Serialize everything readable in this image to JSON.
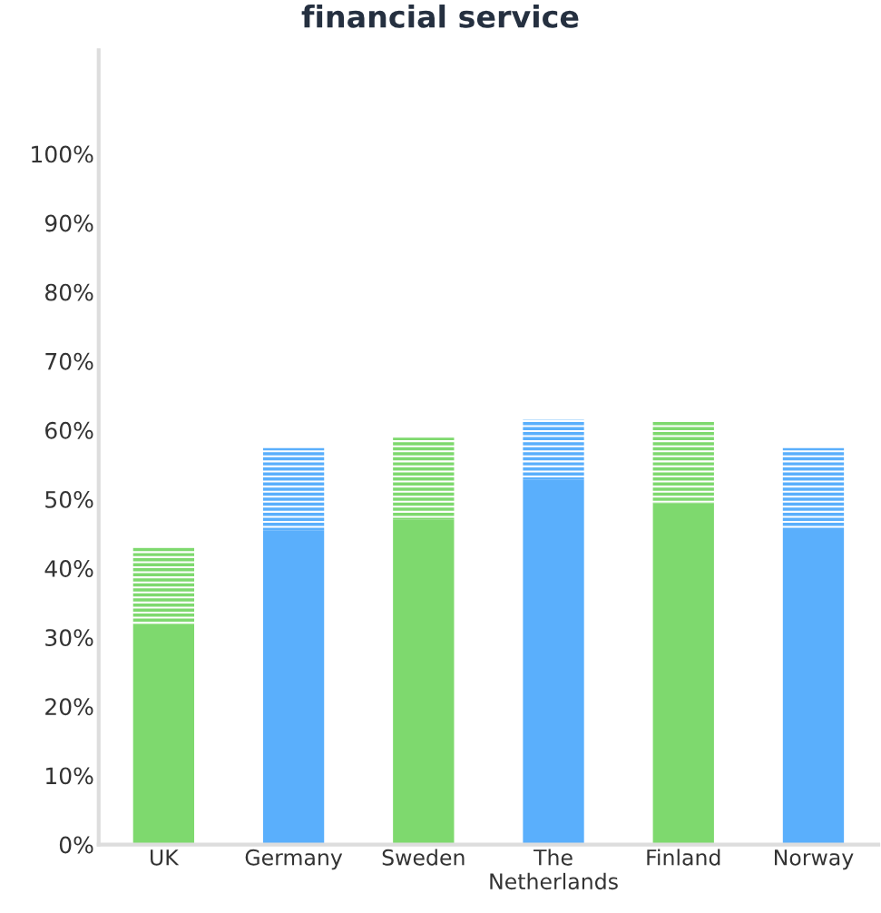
{
  "chart_data": {
    "type": "bar",
    "title": "financial service",
    "stacked": true,
    "categories": [
      "UK",
      "Germany",
      "Sweden",
      "The\nNetherlands",
      "Finland",
      "Norway"
    ],
    "series": [
      {
        "colors": [
          "#7ed96e",
          "#5aaffc",
          "#7ed96e",
          "#5aaffc",
          "#7ed96e",
          "#5aaffc"
        ],
        "values": [
          31.9,
          45.5,
          47.0,
          52.8,
          49.4,
          45.8
        ]
      },
      {
        "colors": [
          "#7ed96e",
          "#5aaffc",
          "#7ed96e",
          "#5aaffc",
          "#7ed96e",
          "#5aaffc"
        ],
        "values": [
          11.1,
          11.9,
          11.9,
          8.7,
          12.0,
          11.6
        ]
      }
    ],
    "ylim": [
      0,
      115
    ],
    "yticks": [
      {
        "value": 0,
        "label": "0%"
      },
      {
        "value": 10,
        "label": "10%"
      },
      {
        "value": 20,
        "label": "20%"
      },
      {
        "value": 30,
        "label": "30%"
      },
      {
        "value": 40,
        "label": "40%"
      },
      {
        "value": 50,
        "label": "50%"
      },
      {
        "value": 60,
        "label": "60%"
      },
      {
        "value": 70,
        "label": "70%"
      },
      {
        "value": 80,
        "label": "80%"
      },
      {
        "value": 90,
        "label": "90%"
      },
      {
        "value": 100,
        "label": "100%"
      }
    ],
    "grid": false,
    "legend": false
  }
}
